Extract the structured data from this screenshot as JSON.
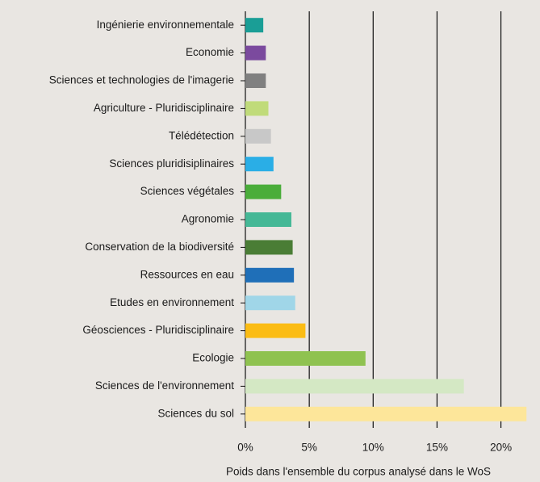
{
  "chart_data": {
    "type": "barh",
    "categories": [
      "Ingénierie environnementale",
      "Economie",
      "Sciences et technologies de l'imagerie",
      "Agriculture - Pluridisciplinaire",
      "Télédétection",
      "Sciences pluridisiplinaires",
      "Sciences végétales",
      "Agronomie",
      "Conservation de la biodiversité",
      "Ressources en eau",
      "Etudes en environnement",
      "Géosciences - Pluridisciplinaire",
      "Ecologie",
      "Sciences de l'environnement",
      "Sciences du sol"
    ],
    "values": [
      1.4,
      1.6,
      1.6,
      1.8,
      2.0,
      2.2,
      2.8,
      3.6,
      3.7,
      3.8,
      3.9,
      4.7,
      9.4,
      17.1,
      22.0
    ],
    "colors": [
      "#1a9e96",
      "#7b4a9e",
      "#808080",
      "#c0db7a",
      "#c8c8c8",
      "#2aaee6",
      "#4aad3a",
      "#45b896",
      "#4a7d35",
      "#1f6fb8",
      "#a0d6e8",
      "#fbbc14",
      "#8fc250",
      "#d4e8c4",
      "#fde69a"
    ],
    "xlabel": "Poids dans l'ensemble du corpus analysé dans le WoS",
    "xlim": [
      0,
      22.3
    ],
    "xticks": [
      {
        "value": 0,
        "label": "0%"
      },
      {
        "value": 5,
        "label": "5%"
      },
      {
        "value": 10,
        "label": "10%"
      },
      {
        "value": 15,
        "label": "15%"
      },
      {
        "value": 20,
        "label": "20%"
      }
    ],
    "grid": true
  }
}
